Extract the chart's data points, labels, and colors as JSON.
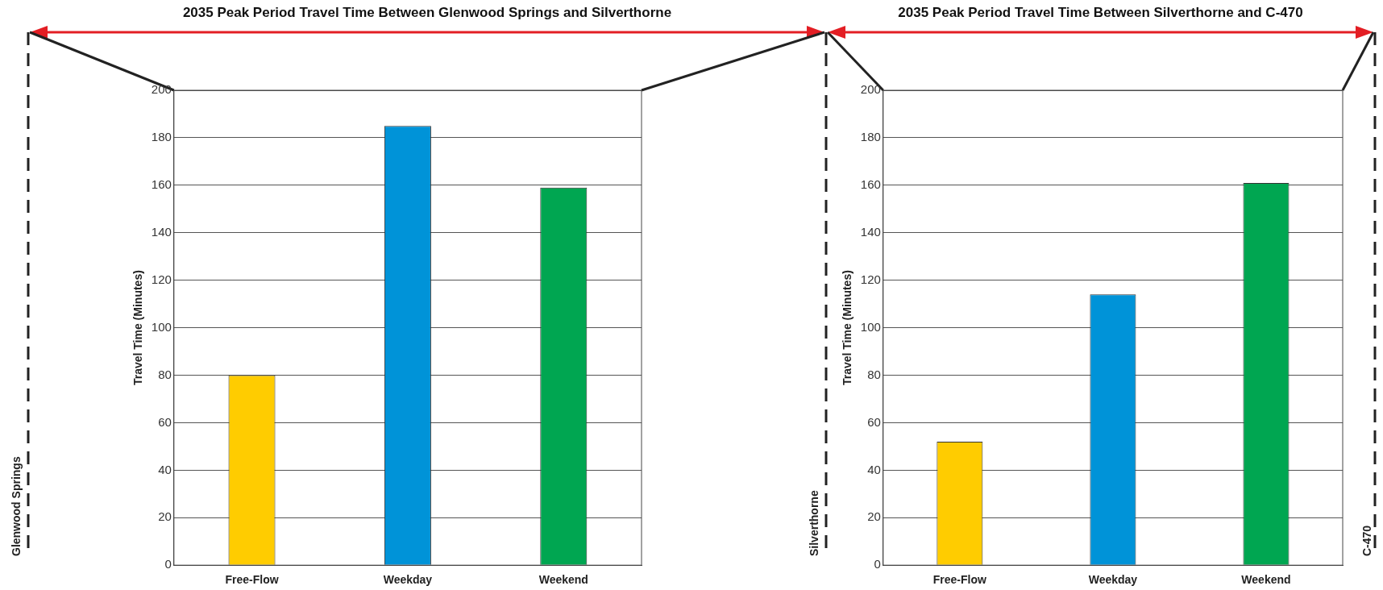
{
  "chart_data": [
    {
      "type": "bar",
      "title": "2035 Peak Period Travel Time Between Glenwood Springs and Silverthorne",
      "ylabel": "Travel Time (Minutes)",
      "categories": [
        "Free-Flow",
        "Weekday",
        "Weekend"
      ],
      "values": [
        80,
        185,
        159
      ],
      "colors": [
        "#ffcc00",
        "#0093d8",
        "#00a651"
      ],
      "ylim": [
        0,
        200
      ],
      "yticks": [
        0,
        20,
        40,
        60,
        80,
        100,
        120,
        140,
        160,
        180,
        200
      ],
      "grid": "y",
      "legend": false,
      "annotations": [
        "Glenwood Springs",
        "Silverthorne"
      ]
    },
    {
      "type": "bar",
      "title": "2035 Peak Period Travel Time Between Silverthorne and C-470",
      "ylabel": "Travel Time (Minutes)",
      "categories": [
        "Free-Flow",
        "Weekday",
        "Weekend"
      ],
      "values": [
        52,
        114,
        161
      ],
      "colors": [
        "#ffcc00",
        "#0093d8",
        "#00a651"
      ],
      "ylim": [
        0,
        200
      ],
      "yticks": [
        0,
        20,
        40,
        60,
        80,
        100,
        120,
        140,
        160,
        180,
        200
      ],
      "grid": "y",
      "legend": false,
      "annotations": [
        "C-470"
      ]
    }
  ]
}
